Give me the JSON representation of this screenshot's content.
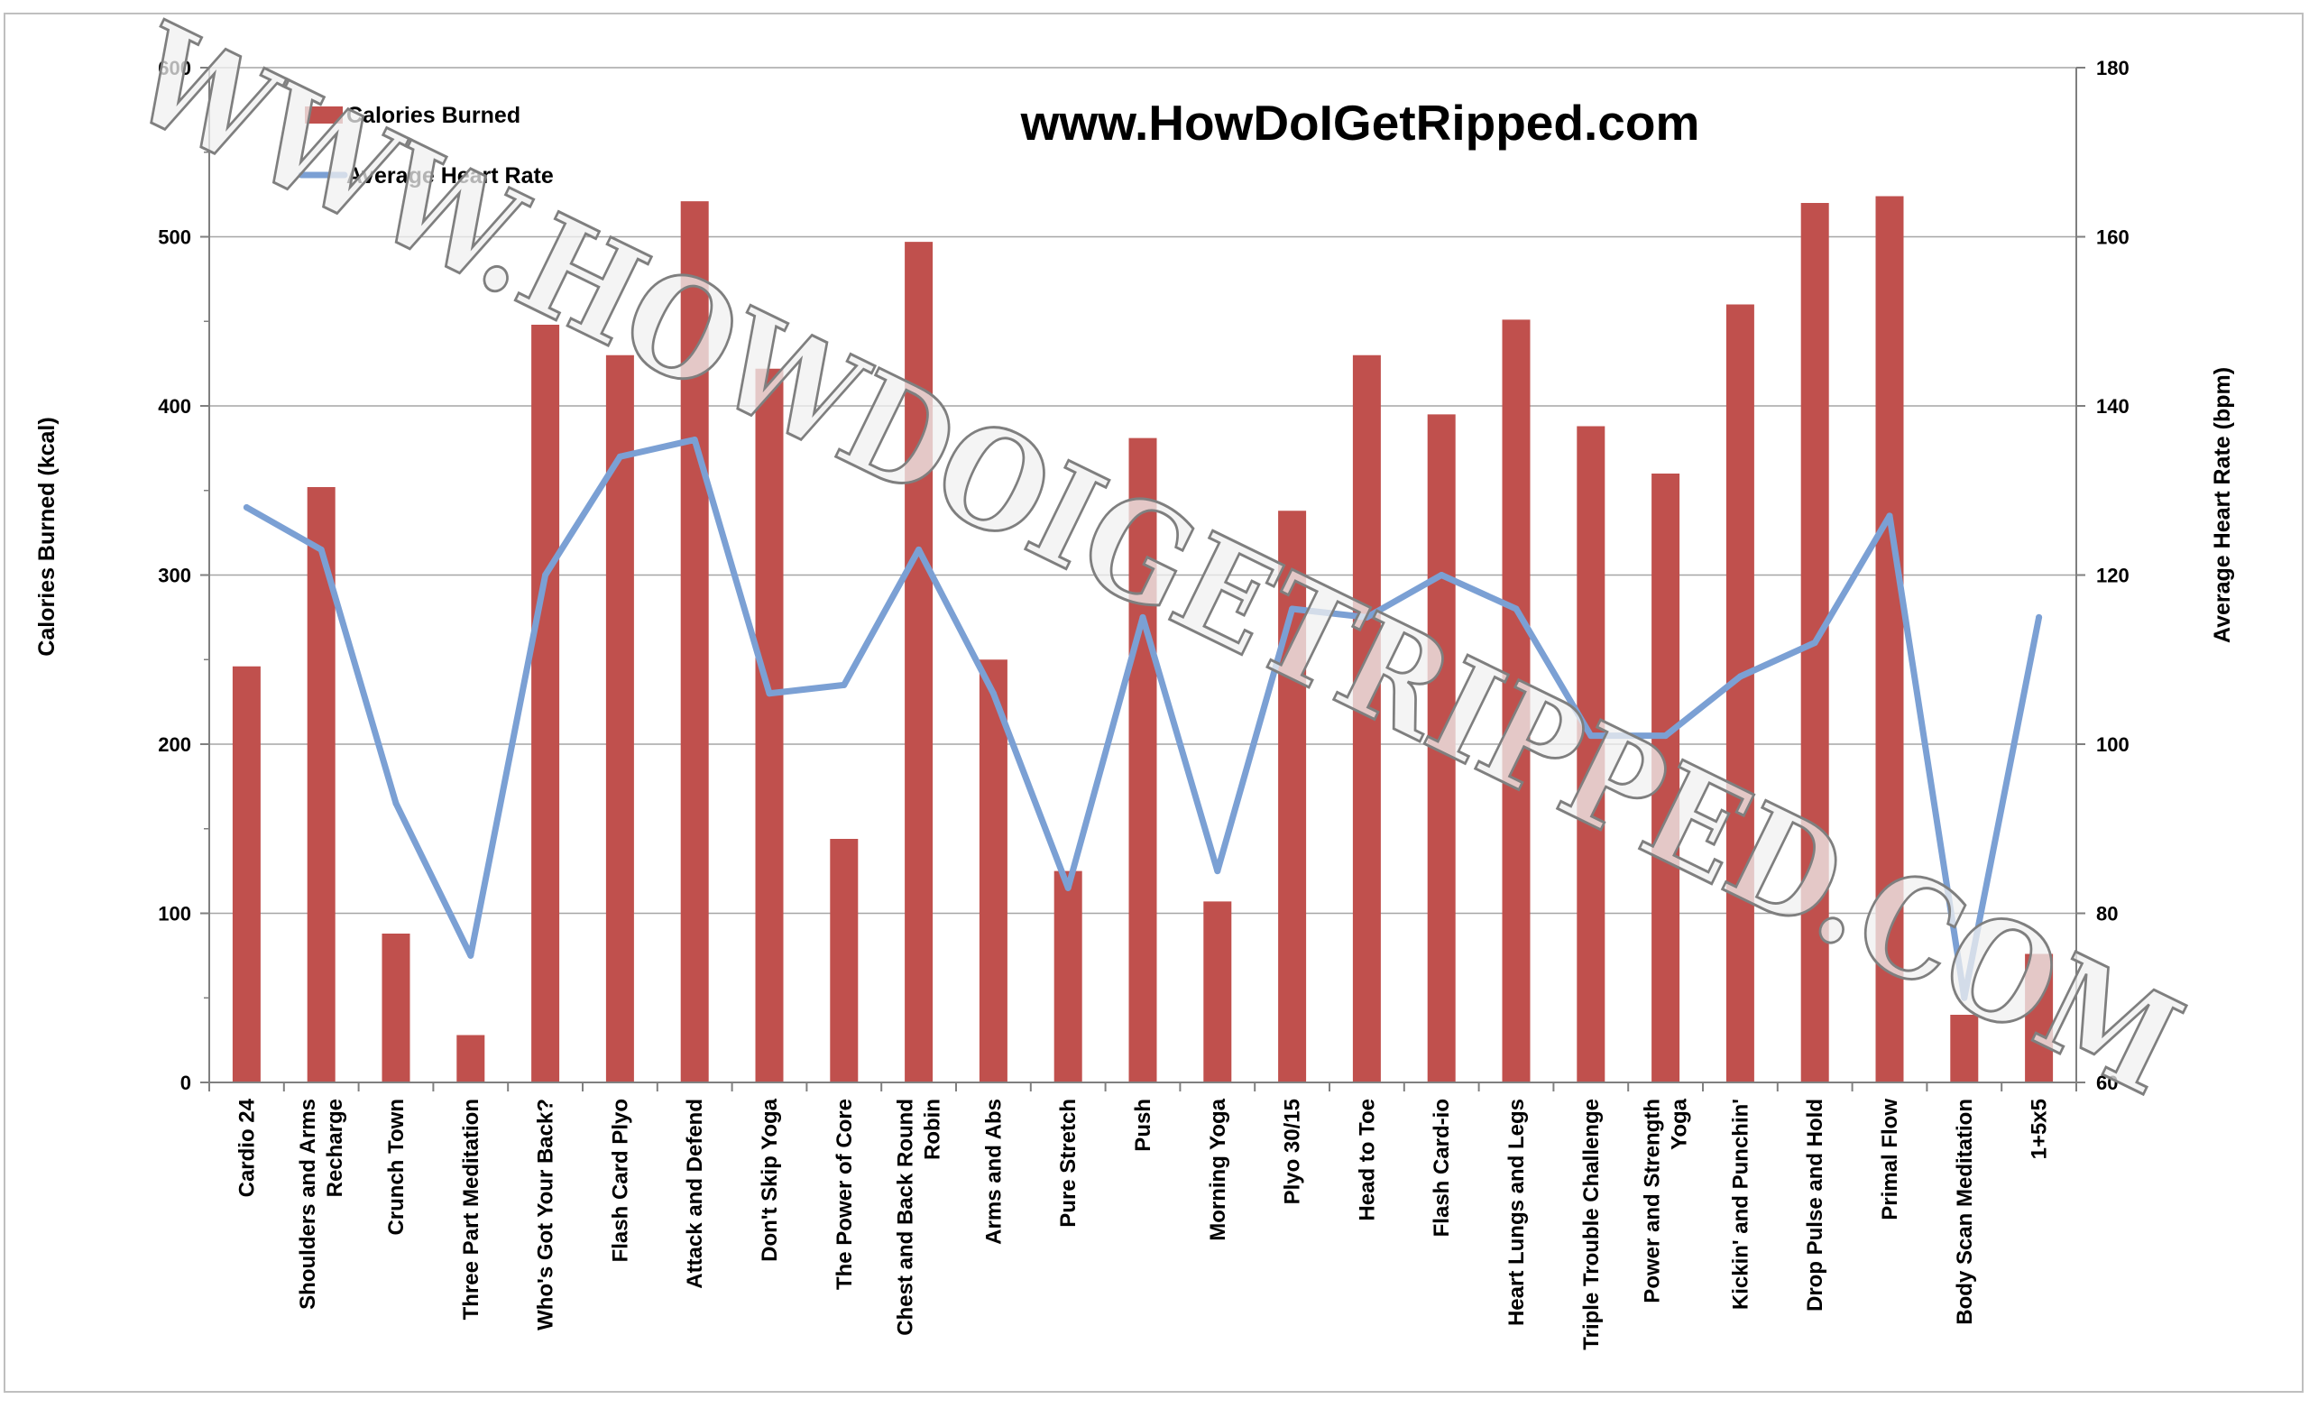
{
  "watermark": "WWW.HOWDOIGETRIPPED.COM",
  "site_title": "www.HowDoIGetRipped.com",
  "colors": {
    "bars": "#C0504D",
    "line": "#7BA0D4",
    "grid": "#a6a6a6"
  },
  "chart_data": {
    "type": "bar",
    "categories": [
      "Cardio 24",
      "Shoulders and Arms Recharge",
      "Crunch Town",
      "Three Part Meditation",
      "Who's Got Your Back?",
      "Flash Card Plyo",
      "Attack and Defend",
      "Don't Skip Yoga",
      "The Power of Core",
      "Chest and Back Round Robin",
      "Arms and Abs",
      "Pure Stretch",
      "Push",
      "Morning Yoga",
      "Plyo 30/15",
      "Head to Toe",
      "Flash Card-io",
      "Heart Lungs and Legs",
      "Triple Trouble Challenge",
      "Power and Strength Yoga",
      "Kickin' and Punchin'",
      "Drop Pulse and Hold",
      "Primal Flow",
      "Body Scan Meditation",
      "1+5x5"
    ],
    "category_lines": [
      [
        "Cardio 24"
      ],
      [
        "Shoulders and Arms",
        "Recharge"
      ],
      [
        "Crunch Town"
      ],
      [
        "Three Part Meditation"
      ],
      [
        "Who's Got Your Back?"
      ],
      [
        "Flash Card Plyo"
      ],
      [
        "Attack and Defend"
      ],
      [
        "Don't Skip Yoga"
      ],
      [
        "The Power of Core"
      ],
      [
        "Chest and Back Round",
        "Robin"
      ],
      [
        "Arms and Abs"
      ],
      [
        "Pure Stretch"
      ],
      [
        "Push"
      ],
      [
        "Morning Yoga"
      ],
      [
        "Plyo 30/15"
      ],
      [
        "Head to Toe"
      ],
      [
        "Flash Card-io"
      ],
      [
        "Heart Lungs and Legs"
      ],
      [
        "Triple Trouble Challenge"
      ],
      [
        "Power and Strength",
        "Yoga"
      ],
      [
        "Kickin' and Punchin'"
      ],
      [
        "Drop Pulse and Hold"
      ],
      [
        "Primal Flow"
      ],
      [
        "Body Scan Meditation"
      ],
      [
        "1+5x5"
      ]
    ],
    "series": [
      {
        "name": "Calories Burned",
        "type": "bar",
        "axis": "left",
        "values": [
          246,
          352,
          88,
          28,
          448,
          430,
          521,
          422,
          144,
          497,
          250,
          125,
          381,
          107,
          338,
          430,
          395,
          451,
          388,
          360,
          460,
          520,
          524,
          40,
          76
        ]
      },
      {
        "name": "Average Heart Rate",
        "type": "line",
        "axis": "right",
        "values": [
          128,
          123,
          93,
          75,
          120,
          134,
          136,
          106,
          107,
          123,
          106,
          83,
          115,
          85,
          116,
          115,
          120,
          116,
          101,
          101,
          108,
          112,
          127,
          70,
          115
        ]
      }
    ],
    "ylabel": "Calories Burned (kcal)",
    "y2label": "Average Heart Rate (bpm)",
    "ylim": [
      0,
      600
    ],
    "y2lim": [
      60,
      180
    ],
    "yticks": [
      "0",
      "100",
      "200",
      "300",
      "400",
      "500",
      "600"
    ],
    "y2ticks": [
      "60",
      "80",
      "100",
      "120",
      "140",
      "160",
      "180"
    ],
    "grid": true,
    "legend_position": "top-left"
  }
}
